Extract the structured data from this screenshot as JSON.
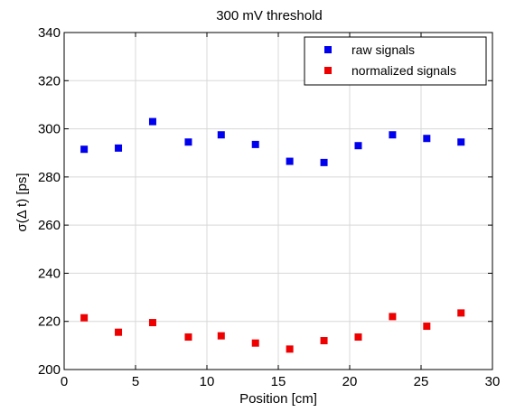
{
  "chart_data": {
    "type": "scatter",
    "title": "300 mV threshold",
    "xlabel": "Position [cm]",
    "ylabel": "σ(Δ t) [ps]",
    "xlim": [
      0,
      30
    ],
    "ylim": [
      200,
      340
    ],
    "xticks": [
      0,
      5,
      10,
      15,
      20,
      25,
      30
    ],
    "yticks": [
      200,
      220,
      240,
      260,
      280,
      300,
      320,
      340
    ],
    "grid": true,
    "legend_position": "top-right",
    "series": [
      {
        "name": "raw signals",
        "color": "#0000ee",
        "x": [
          1.4,
          3.8,
          6.2,
          8.7,
          11.0,
          13.4,
          15.8,
          18.2,
          20.6,
          23.0,
          25.4,
          27.8
        ],
        "y": [
          291.5,
          292,
          303,
          294.5,
          297.5,
          293.5,
          286.5,
          286,
          293,
          297.5,
          296,
          294.5
        ]
      },
      {
        "name": "normalized signals",
        "color": "#ee0000",
        "x": [
          1.4,
          3.8,
          6.2,
          8.7,
          11.0,
          13.4,
          15.8,
          18.2,
          20.6,
          23.0,
          25.4,
          27.8
        ],
        "y": [
          221.5,
          215.5,
          219.5,
          213.5,
          214,
          211,
          208.5,
          212,
          213.5,
          222,
          218,
          223.5
        ]
      }
    ]
  }
}
